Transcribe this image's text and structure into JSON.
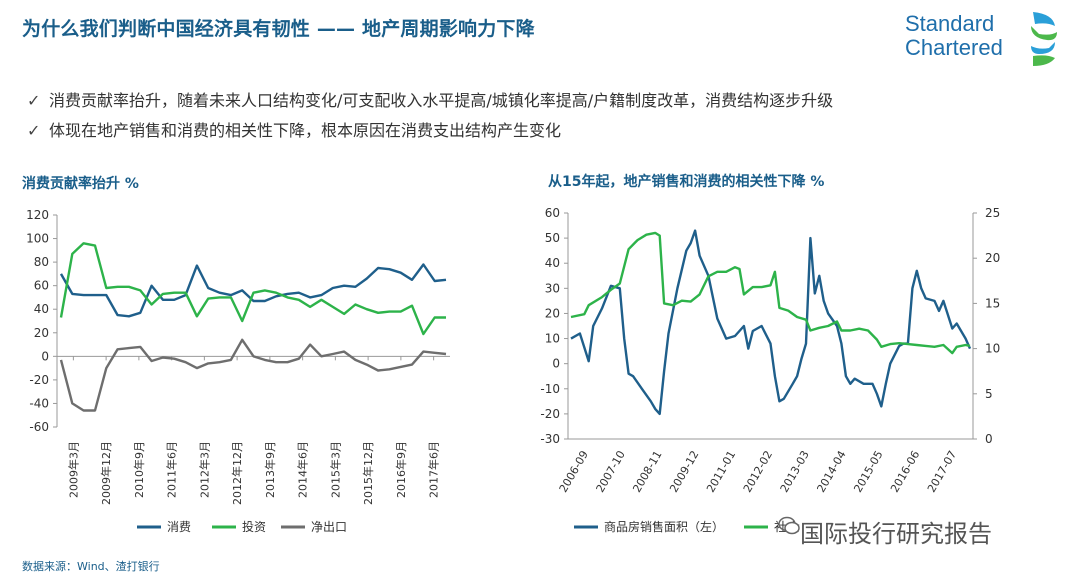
{
  "header": {
    "title": "为什么我们判断中国经济具有韧性 —— 地产周期影响力下降",
    "logo_line1": "Standard",
    "logo_line2": "Chartered"
  },
  "bullets": [
    "消费贡献率抬升，随着未来人口结构变化/可支配收入水平提高/城镇化率提高/户籍制度改革，消费结构逐步升级",
    "体现在地产销售和消费的相关性下降，根本原因在消费支出结构产生变化"
  ],
  "colors": {
    "consumption": "#1f5f8b",
    "investment": "#2db34a",
    "net_exports": "#6e6e6e",
    "title": "#1a5e8a"
  },
  "chart_data": [
    {
      "type": "line",
      "title": "消费贡献率抬升   %",
      "ylim": [
        -60,
        120
      ],
      "yticks": [
        -60,
        -40,
        -20,
        0,
        20,
        40,
        60,
        80,
        100,
        120
      ],
      "xticks": [
        "2009年3月",
        "2009年12月",
        "2010年9月",
        "2011年6月",
        "2012年3月",
        "2012年12月",
        "2013年9月",
        "2014年6月",
        "2015年3月",
        "2015年12月",
        "2016年9月",
        "2017年6月"
      ],
      "x_count": 35,
      "series": [
        {
          "name": "消费",
          "values": [
            70,
            53,
            52,
            52,
            52,
            35,
            34,
            37,
            60,
            48,
            48,
            52,
            77,
            58,
            54,
            52,
            56,
            47,
            47,
            51,
            53,
            54,
            50,
            52,
            58,
            60,
            59,
            66,
            75,
            74,
            71,
            65,
            78,
            64,
            65
          ]
        },
        {
          "name": "投资",
          "values": [
            33,
            87,
            96,
            94,
            58,
            59,
            59,
            56,
            44,
            53,
            54,
            54,
            34,
            49,
            50,
            50,
            30,
            54,
            56,
            54,
            50,
            48,
            42,
            48,
            42,
            36,
            44,
            40,
            37,
            38,
            38,
            43,
            19,
            33,
            33
          ]
        },
        {
          "name": "净出口",
          "values": [
            -3,
            -40,
            -46,
            -46,
            -10,
            6,
            7,
            8,
            -4,
            -1,
            -2,
            -5,
            -10,
            -6,
            -5,
            -3,
            14,
            0,
            -3,
            -5,
            -5,
            -2,
            10,
            0,
            2,
            4,
            -3,
            -7,
            -12,
            -11,
            -9,
            -7,
            4,
            3,
            2
          ]
        }
      ]
    },
    {
      "type": "line",
      "title": "从15年起，地产销售和消费的相关性下降   %",
      "ylim_left": [
        -30,
        60
      ],
      "yticks_left": [
        -30,
        -20,
        -10,
        0,
        10,
        20,
        30,
        40,
        50,
        60
      ],
      "ylim_right": [
        0,
        25
      ],
      "yticks_right": [
        0,
        5,
        10,
        15,
        20,
        25
      ],
      "xticks": [
        "2006-09",
        "2007-10",
        "2008-11",
        "2009-12",
        "2011-01",
        "2012-02",
        "2013-03",
        "2014-04",
        "2015-05",
        "2016-06",
        "2017-07"
      ],
      "series": [
        {
          "name": "商品房销售面积（左）",
          "axis": "left",
          "points": [
            [
              0,
              10
            ],
            [
              2,
              12
            ],
            [
              4,
              1
            ],
            [
              5,
              15
            ],
            [
              7,
              22
            ],
            [
              9,
              31
            ],
            [
              11,
              30
            ],
            [
              12,
              10
            ],
            [
              13,
              -4
            ],
            [
              14,
              -5
            ],
            [
              16,
              -10
            ],
            [
              18,
              -15
            ],
            [
              19,
              -18
            ],
            [
              20,
              -20
            ],
            [
              21,
              -3
            ],
            [
              22,
              12
            ],
            [
              24,
              30
            ],
            [
              26,
              45
            ],
            [
              27,
              48
            ],
            [
              28,
              53
            ],
            [
              29,
              43
            ],
            [
              31,
              35
            ],
            [
              33,
              18
            ],
            [
              35,
              10
            ],
            [
              37,
              11
            ],
            [
              39,
              15
            ],
            [
              40,
              6
            ],
            [
              41,
              13
            ],
            [
              43,
              15
            ],
            [
              45,
              8
            ],
            [
              46,
              -5
            ],
            [
              47,
              -15
            ],
            [
              48,
              -14
            ],
            [
              50,
              -8
            ],
            [
              51,
              -5
            ],
            [
              52,
              2
            ],
            [
              53,
              8
            ],
            [
              54,
              50
            ],
            [
              55,
              28
            ],
            [
              56,
              35
            ],
            [
              57,
              25
            ],
            [
              58,
              20
            ],
            [
              60,
              15
            ],
            [
              61,
              8
            ],
            [
              62,
              -5
            ],
            [
              63,
              -8
            ],
            [
              64,
              -6
            ],
            [
              66,
              -8
            ],
            [
              68,
              -8
            ],
            [
              69,
              -12
            ],
            [
              70,
              -17
            ],
            [
              71,
              -8
            ],
            [
              72,
              0
            ],
            [
              74,
              7
            ],
            [
              75,
              8
            ],
            [
              76,
              8
            ],
            [
              77,
              30
            ],
            [
              78,
              37
            ],
            [
              79,
              30
            ],
            [
              80,
              26
            ],
            [
              82,
              25
            ],
            [
              83,
              21
            ],
            [
              84,
              25
            ],
            [
              86,
              14
            ],
            [
              87,
              16
            ],
            [
              88,
              13
            ],
            [
              89,
              10
            ],
            [
              90,
              6
            ]
          ]
        },
        {
          "name": "社会消费品零售总额同比（右）",
          "axis": "right",
          "points": [
            [
              0,
              13.5
            ],
            [
              3,
              13.8
            ],
            [
              4,
              14.8
            ],
            [
              7,
              15.7
            ],
            [
              9,
              16.5
            ],
            [
              11,
              17.2
            ],
            [
              13,
              21
            ],
            [
              15,
              22
            ],
            [
              17,
              22.6
            ],
            [
              19,
              22.8
            ],
            [
              20,
              22.5
            ],
            [
              21,
              15
            ],
            [
              23,
              14.8
            ],
            [
              25,
              15.3
            ],
            [
              27,
              15.2
            ],
            [
              29,
              16
            ],
            [
              31,
              18
            ],
            [
              33,
              18.5
            ],
            [
              35,
              18.5
            ],
            [
              37,
              19
            ],
            [
              38,
              18.8
            ],
            [
              39,
              16
            ],
            [
              41,
              16.8
            ],
            [
              43,
              16.8
            ],
            [
              45,
              17
            ],
            [
              46,
              18.5
            ],
            [
              47,
              14.5
            ],
            [
              49,
              14.2
            ],
            [
              51,
              13.5
            ],
            [
              53,
              13.2
            ],
            [
              54,
              12
            ],
            [
              56,
              12.3
            ],
            [
              58,
              12.5
            ],
            [
              60,
              13
            ],
            [
              61,
              12
            ],
            [
              63,
              12
            ],
            [
              65,
              12.2
            ],
            [
              67,
              12
            ],
            [
              69,
              11
            ],
            [
              70,
              10.2
            ],
            [
              72,
              10.5
            ],
            [
              74,
              10.6
            ],
            [
              76,
              10.5
            ],
            [
              78,
              10.4
            ],
            [
              80,
              10.3
            ],
            [
              82,
              10.2
            ],
            [
              84,
              10.4
            ],
            [
              86,
              9.5
            ],
            [
              87,
              10.2
            ],
            [
              89,
              10.4
            ],
            [
              90,
              10.3
            ]
          ]
        }
      ],
      "x_count": 91
    }
  ],
  "source": "数据来源：Wind、渣打银行",
  "watermark": "国际投行研究报告"
}
